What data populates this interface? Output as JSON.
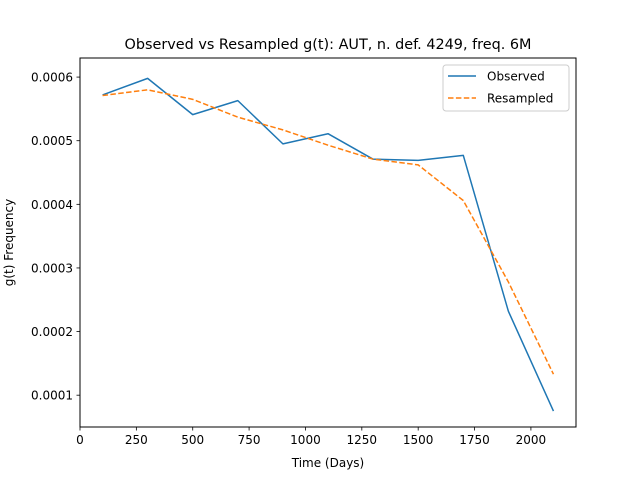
{
  "chart_data": {
    "type": "line",
    "title": "Observed vs Resampled g(t): AUT, n. def. 4249, freq. 6M",
    "xlabel": "Time (Days)",
    "ylabel": "g(t) Frequency",
    "xlim": [
      0,
      2200
    ],
    "ylim": [
      5e-05,
      0.00063
    ],
    "xticks": [
      0,
      250,
      500,
      750,
      1000,
      1250,
      1500,
      1750,
      2000
    ],
    "xtick_labels": [
      "0",
      "250",
      "500",
      "750",
      "1000",
      "1250",
      "1500",
      "1750",
      "2000"
    ],
    "yticks": [
      0.0001,
      0.0002,
      0.0003,
      0.0004,
      0.0005,
      0.0006
    ],
    "ytick_labels": [
      "0.0001",
      "0.0002",
      "0.0003",
      "0.0004",
      "0.0005",
      "0.0006"
    ],
    "grid": false,
    "legend_position": "top-right",
    "series": [
      {
        "name": "Observed",
        "color": "#1f77b4",
        "style": "solid",
        "x": [
          100,
          300,
          500,
          700,
          900,
          1100,
          1300,
          1500,
          1700,
          1900,
          2100
        ],
        "y": [
          0.000572,
          0.000598,
          0.000541,
          0.000563,
          0.000495,
          0.000511,
          0.000471,
          0.000469,
          0.000477,
          0.000232,
          7.5e-05
        ]
      },
      {
        "name": "Resampled",
        "color": "#ff7f0e",
        "style": "dashed",
        "x": [
          100,
          300,
          500,
          700,
          900,
          1100,
          1300,
          1500,
          1700,
          1900,
          2100
        ],
        "y": [
          0.000571,
          0.00058,
          0.000565,
          0.000537,
          0.000517,
          0.000493,
          0.000471,
          0.000462,
          0.000406,
          0.000278,
          0.000133
        ]
      }
    ]
  }
}
